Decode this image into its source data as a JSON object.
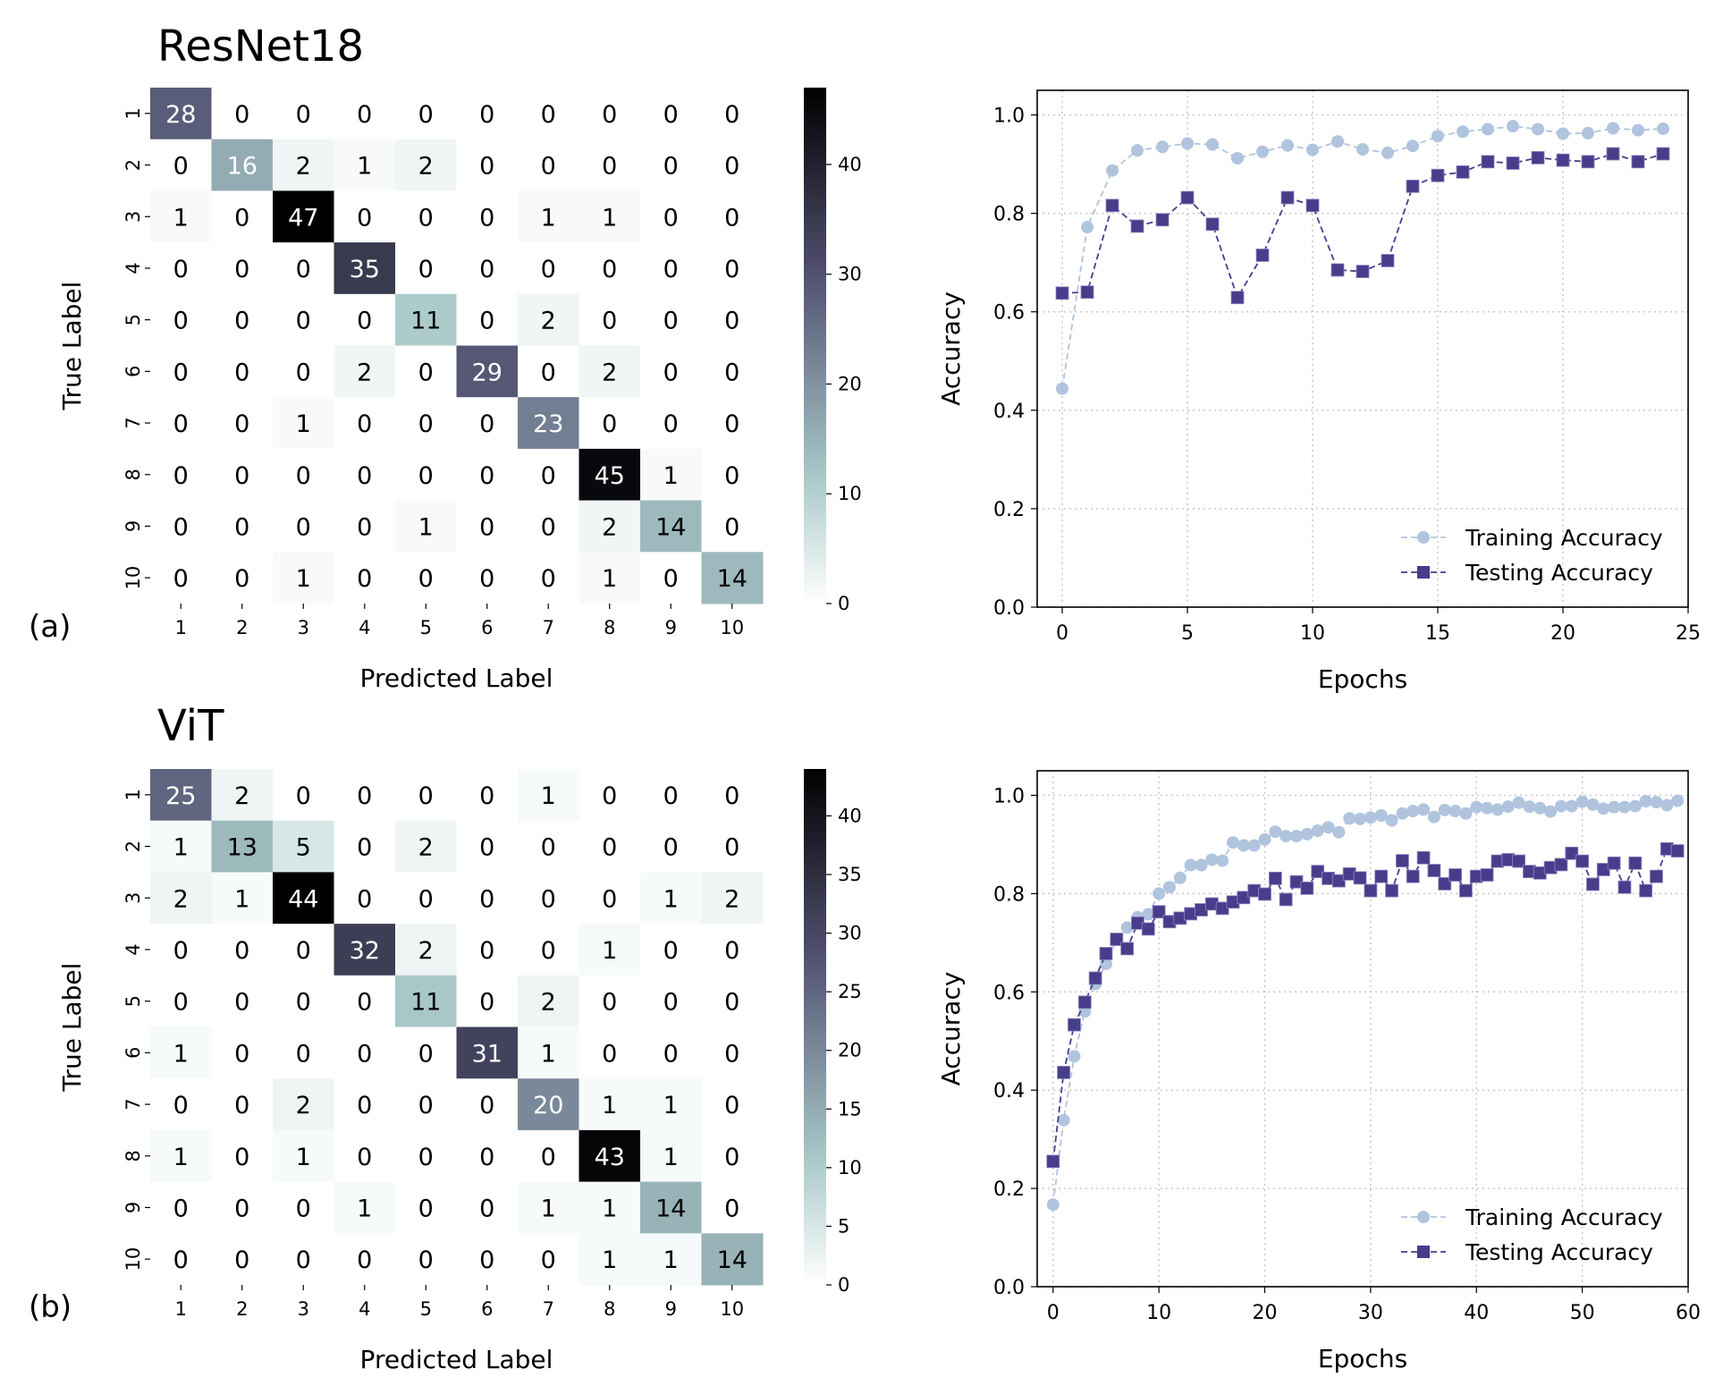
{
  "panels": [
    {
      "title": "ResNet18",
      "label": "(a)"
    },
    {
      "title": "ViT",
      "label": "(b)"
    }
  ],
  "chart_data": [
    {
      "type": "heatmap",
      "title": "ResNet18",
      "xlabel": "Predicted Label",
      "ylabel": "True Label",
      "x_tick_labels": [
        "1",
        "2",
        "3",
        "4",
        "5",
        "6",
        "7",
        "8",
        "9",
        "10"
      ],
      "y_tick_labels": [
        "1",
        "2",
        "3",
        "4",
        "5",
        "6",
        "7",
        "8",
        "9",
        "10"
      ],
      "colormap": "bone_r",
      "vmin": 0,
      "vmax": 47,
      "colorbar_ticks": [
        0,
        10,
        20,
        30,
        40
      ],
      "matrix": [
        [
          28,
          0,
          0,
          0,
          0,
          0,
          0,
          0,
          0,
          0
        ],
        [
          0,
          16,
          2,
          1,
          2,
          0,
          0,
          0,
          0,
          0
        ],
        [
          1,
          0,
          47,
          0,
          0,
          0,
          1,
          1,
          0,
          0
        ],
        [
          0,
          0,
          0,
          35,
          0,
          0,
          0,
          0,
          0,
          0
        ],
        [
          0,
          0,
          0,
          0,
          11,
          0,
          2,
          0,
          0,
          0
        ],
        [
          0,
          0,
          0,
          2,
          0,
          29,
          0,
          2,
          0,
          0
        ],
        [
          0,
          0,
          1,
          0,
          0,
          0,
          23,
          0,
          0,
          0
        ],
        [
          0,
          0,
          0,
          0,
          0,
          0,
          0,
          45,
          1,
          0
        ],
        [
          0,
          0,
          0,
          0,
          1,
          0,
          0,
          2,
          14,
          0
        ],
        [
          0,
          0,
          1,
          0,
          0,
          0,
          0,
          1,
          0,
          14
        ]
      ]
    },
    {
      "type": "line",
      "xlabel": "Epochs",
      "ylabel": "Accuracy",
      "xlim": [
        -1,
        25
      ],
      "ylim": [
        0,
        1.05
      ],
      "x_ticks": [
        0,
        5,
        10,
        15,
        20,
        25
      ],
      "y_ticks": [
        0.0,
        0.2,
        0.4,
        0.6,
        0.8,
        1.0
      ],
      "grid": true,
      "legend_position": "lower-right",
      "x": [
        0,
        1,
        2,
        3,
        4,
        5,
        6,
        7,
        8,
        9,
        10,
        11,
        12,
        13,
        14,
        15,
        16,
        17,
        18,
        19,
        20,
        21,
        22,
        23,
        24
      ],
      "series": [
        {
          "name": "Training Accuracy",
          "color": "#b0c4de",
          "marker": "circle",
          "values": [
            0.444,
            0.772,
            0.887,
            0.928,
            0.935,
            0.942,
            0.94,
            0.912,
            0.925,
            0.938,
            0.929,
            0.946,
            0.93,
            0.923,
            0.937,
            0.957,
            0.966,
            0.971,
            0.977,
            0.971,
            0.962,
            0.963,
            0.973,
            0.969,
            0.972
          ]
        },
        {
          "name": "Testing Accuracy",
          "color": "#483d8b",
          "marker": "square",
          "values": [
            0.638,
            0.64,
            0.816,
            0.774,
            0.787,
            0.832,
            0.778,
            0.629,
            0.715,
            0.832,
            0.816,
            0.685,
            0.682,
            0.704,
            0.855,
            0.877,
            0.884,
            0.905,
            0.902,
            0.913,
            0.908,
            0.905,
            0.921,
            0.905,
            0.921
          ]
        }
      ]
    },
    {
      "type": "heatmap",
      "title": "ViT",
      "xlabel": "Predicted Label",
      "ylabel": "True Label",
      "x_tick_labels": [
        "1",
        "2",
        "3",
        "4",
        "5",
        "6",
        "7",
        "8",
        "9",
        "10"
      ],
      "y_tick_labels": [
        "1",
        "2",
        "3",
        "4",
        "5",
        "6",
        "7",
        "8",
        "9",
        "10"
      ],
      "colormap": "bone_r",
      "vmin": 0,
      "vmax": 44,
      "colorbar_ticks": [
        0,
        5,
        10,
        15,
        20,
        25,
        30,
        35,
        40
      ],
      "matrix": [
        [
          25,
          2,
          0,
          0,
          0,
          0,
          1,
          0,
          0,
          0
        ],
        [
          1,
          13,
          5,
          0,
          2,
          0,
          0,
          0,
          0,
          0
        ],
        [
          2,
          1,
          44,
          0,
          0,
          0,
          0,
          0,
          1,
          2
        ],
        [
          0,
          0,
          0,
          32,
          2,
          0,
          0,
          1,
          0,
          0
        ],
        [
          0,
          0,
          0,
          0,
          11,
          0,
          2,
          0,
          0,
          0
        ],
        [
          1,
          0,
          0,
          0,
          0,
          31,
          1,
          0,
          0,
          0
        ],
        [
          0,
          0,
          2,
          0,
          0,
          0,
          20,
          1,
          1,
          0
        ],
        [
          1,
          0,
          1,
          0,
          0,
          0,
          0,
          43,
          1,
          0
        ],
        [
          0,
          0,
          0,
          1,
          0,
          0,
          1,
          1,
          14,
          0
        ],
        [
          0,
          0,
          0,
          0,
          0,
          0,
          0,
          1,
          1,
          14
        ]
      ]
    },
    {
      "type": "line",
      "xlabel": "Epochs",
      "ylabel": "Accuracy",
      "xlim": [
        -1.5,
        60
      ],
      "ylim": [
        0,
        1.05
      ],
      "x_ticks": [
        0,
        10,
        20,
        30,
        40,
        50,
        60
      ],
      "y_ticks": [
        0.0,
        0.2,
        0.4,
        0.6,
        0.8,
        1.0
      ],
      "grid": true,
      "legend_position": "lower-right",
      "x": [
        0,
        1,
        2,
        3,
        4,
        5,
        6,
        7,
        8,
        9,
        10,
        11,
        12,
        13,
        14,
        15,
        16,
        17,
        18,
        19,
        20,
        21,
        22,
        23,
        24,
        25,
        26,
        27,
        28,
        29,
        30,
        31,
        32,
        33,
        34,
        35,
        36,
        37,
        38,
        39,
        40,
        41,
        42,
        43,
        44,
        45,
        46,
        47,
        48,
        49,
        50,
        51,
        52,
        53,
        54,
        55,
        56,
        57,
        58,
        59
      ],
      "series": [
        {
          "name": "Training Accuracy",
          "color": "#b0c4de",
          "marker": "circle",
          "values": [
            0.167,
            0.339,
            0.469,
            0.56,
            0.616,
            0.657,
            0.706,
            0.731,
            0.752,
            0.758,
            0.8,
            0.813,
            0.832,
            0.858,
            0.858,
            0.869,
            0.867,
            0.904,
            0.898,
            0.898,
            0.91,
            0.926,
            0.917,
            0.917,
            0.921,
            0.928,
            0.935,
            0.925,
            0.953,
            0.952,
            0.955,
            0.959,
            0.949,
            0.963,
            0.968,
            0.971,
            0.956,
            0.97,
            0.968,
            0.963,
            0.976,
            0.974,
            0.971,
            0.977,
            0.985,
            0.977,
            0.974,
            0.967,
            0.978,
            0.978,
            0.987,
            0.981,
            0.973,
            0.976,
            0.976,
            0.978,
            0.988,
            0.986,
            0.98,
            0.989
          ]
        },
        {
          "name": "Testing Accuracy",
          "color": "#483d8b",
          "marker": "square",
          "values": [
            0.255,
            0.436,
            0.533,
            0.579,
            0.628,
            0.678,
            0.707,
            0.688,
            0.74,
            0.728,
            0.763,
            0.743,
            0.75,
            0.759,
            0.767,
            0.779,
            0.77,
            0.783,
            0.792,
            0.806,
            0.799,
            0.831,
            0.788,
            0.824,
            0.811,
            0.845,
            0.831,
            0.826,
            0.84,
            0.832,
            0.806,
            0.835,
            0.806,
            0.867,
            0.835,
            0.873,
            0.847,
            0.82,
            0.838,
            0.806,
            0.835,
            0.838,
            0.866,
            0.869,
            0.866,
            0.845,
            0.842,
            0.853,
            0.859,
            0.882,
            0.866,
            0.819,
            0.849,
            0.862,
            0.813,
            0.862,
            0.806,
            0.835,
            0.891,
            0.887
          ]
        }
      ]
    }
  ]
}
